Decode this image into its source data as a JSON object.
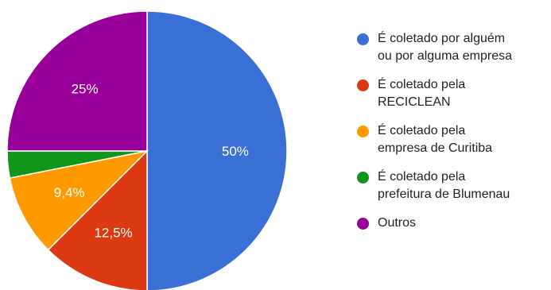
{
  "chart_data": {
    "type": "pie",
    "categories": [
      "É coletado por alguém ou por alguma empresa",
      "É coletado pela RECICLEAN",
      "É coletado pela empresa de Curitiba",
      "É coletado pela prefeitura de Blumenau",
      "Outros"
    ],
    "values": [
      50,
      12.5,
      9.4,
      3.1,
      25
    ],
    "data_labels": [
      "50%",
      "12,5%",
      "9,4%",
      "",
      "25%"
    ],
    "colors": [
      "#3a6fd6",
      "#dc3a12",
      "#ff9900",
      "#109618",
      "#990099"
    ],
    "legend_lines": [
      "É coletado por alguém\nou por alguma empresa",
      "É coletado pela\nRECICLEAN",
      "É coletado pela\nempresa de Curitiba",
      "É coletado pela\nprefeitura de Blumenau",
      "Outros"
    ],
    "legend_position": "right",
    "start_angle": "top",
    "direction": "clockwise"
  }
}
